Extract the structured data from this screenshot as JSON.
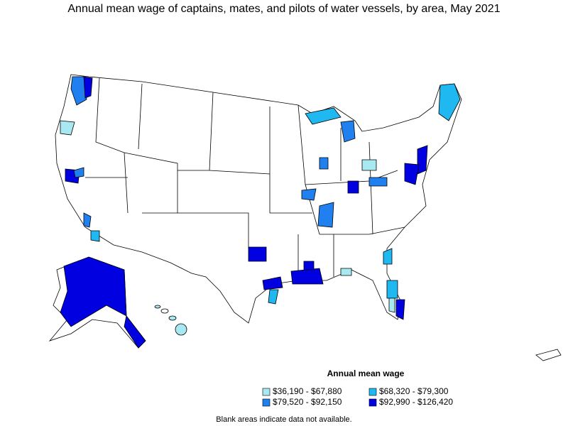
{
  "title": "Annual mean wage of captains, mates, and pilots of water vessels, by area, May 2021",
  "legend": {
    "title": "Annual mean wage",
    "items": [
      {
        "label": "$36,190 - $67,880",
        "color": "#a8e8f0"
      },
      {
        "label": "$68,320 - $79,300",
        "color": "#20b8f0"
      },
      {
        "label": "$79,520 - $92,150",
        "color": "#2080f0"
      },
      {
        "label": "$92,990 - $126,420",
        "color": "#0000e0"
      }
    ]
  },
  "footnote": "Blank areas indicate data not available."
}
